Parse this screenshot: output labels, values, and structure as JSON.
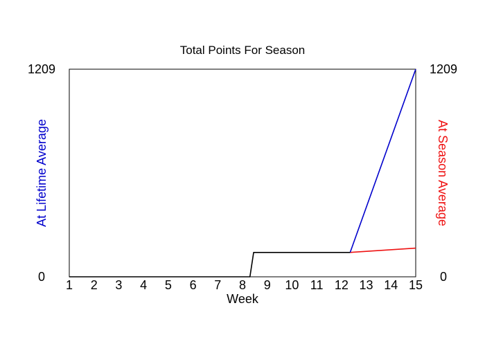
{
  "chart_data": {
    "type": "line",
    "title": "Total Points For Season",
    "xlabel": "Week",
    "ylabel_left": "At Lifetime Average",
    "ylabel_right": "At Season Average",
    "ylim": [
      0,
      1209
    ],
    "ytick_labels_left": [
      "0",
      "1209"
    ],
    "ytick_labels_right": [
      "0",
      "1209"
    ],
    "xlim": [
      1,
      15
    ],
    "categories": [
      "1",
      "2",
      "3",
      "4",
      "5",
      "6",
      "7",
      "8",
      "9",
      "10",
      "11",
      "12",
      "13",
      "14",
      "15"
    ],
    "grid": false,
    "colors": {
      "actual": "#000000",
      "lifetime": "#0000cc",
      "season": "#ee1111",
      "left_label": "#0000cc",
      "right_label": "#ee1111"
    },
    "series": [
      {
        "key": "actual",
        "x": [
          1,
          8.3,
          8.45,
          12.35
        ],
        "y": [
          0,
          0,
          142,
          142
        ]
      },
      {
        "key": "lifetime",
        "x": [
          12.35,
          15
        ],
        "y": [
          142,
          1209
        ]
      },
      {
        "key": "season",
        "x": [
          12.35,
          15
        ],
        "y": [
          142,
          167
        ]
      }
    ]
  }
}
